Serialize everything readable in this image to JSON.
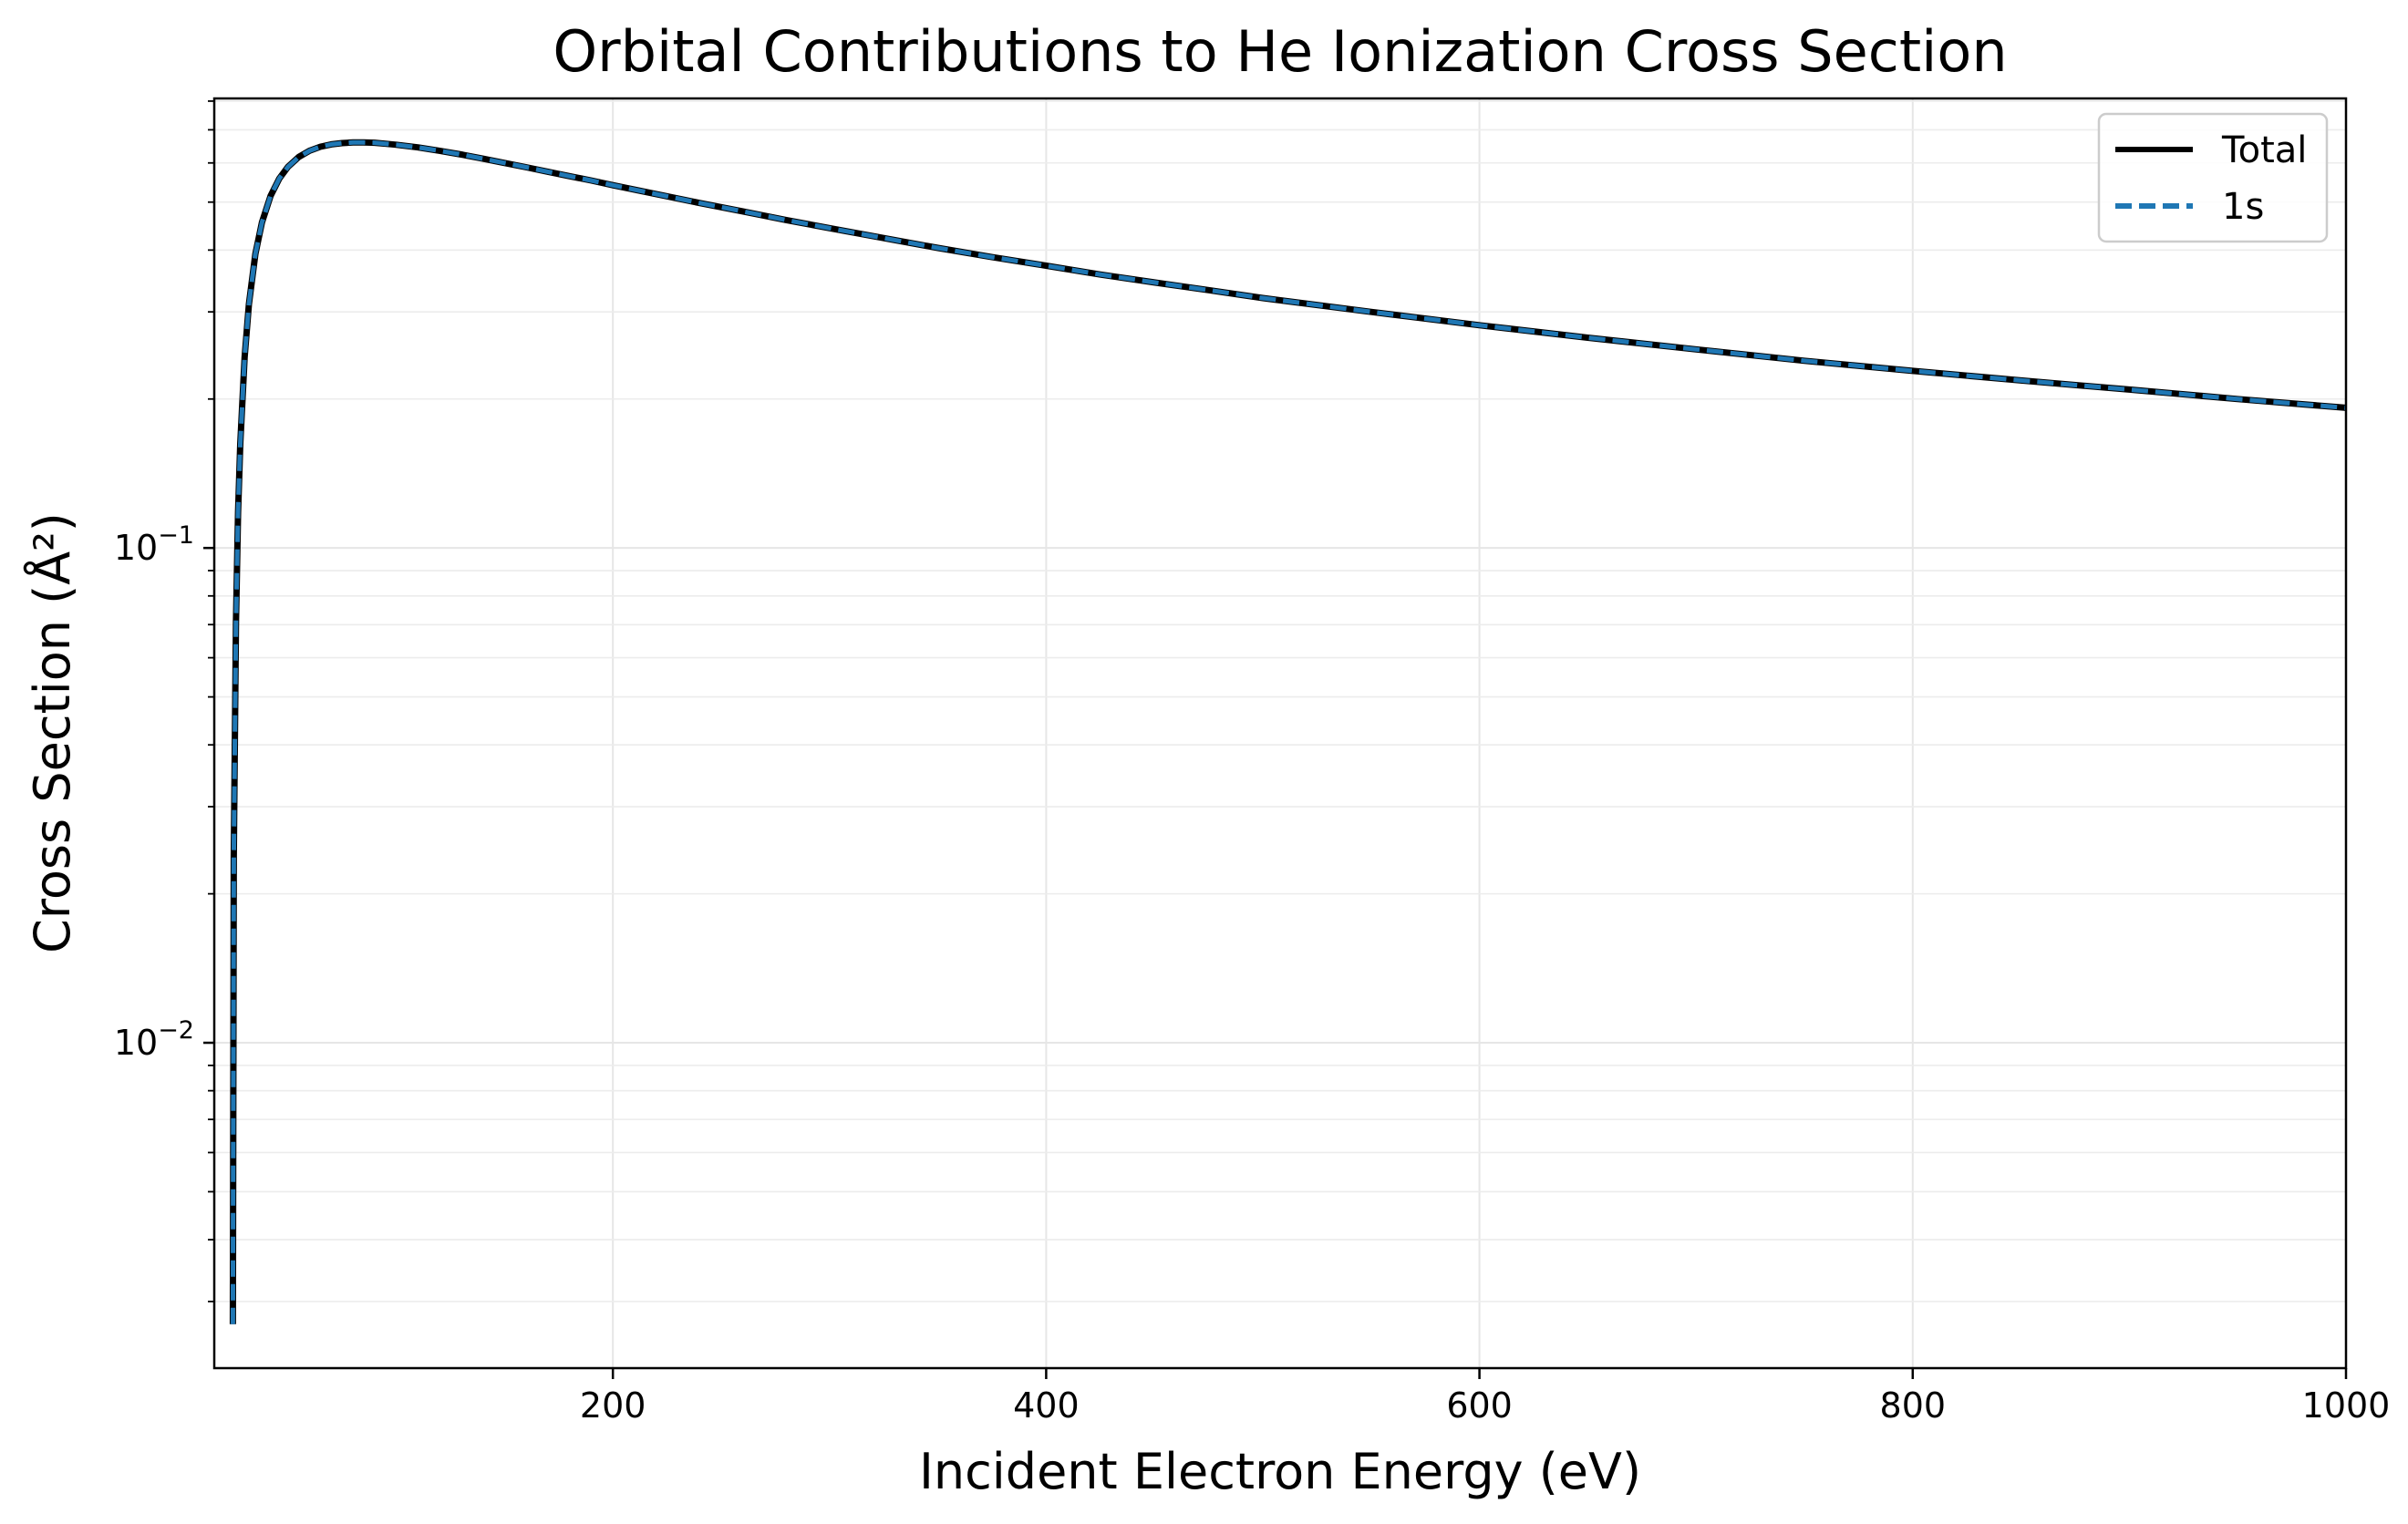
{
  "chart_data": {
    "type": "line",
    "title": "Orbital Contributions to He Ionization Cross Section",
    "xlabel": "Incident Electron Energy (eV)",
    "ylabel": "Cross Section (Å²)",
    "xscale": "linear",
    "yscale": "log",
    "xlim": [
      16,
      1000
    ],
    "ylim": [
      0.0022,
      0.81
    ],
    "x_ticks": [
      {
        "value": 200,
        "label": "200"
      },
      {
        "value": 400,
        "label": "400"
      },
      {
        "value": 600,
        "label": "600"
      },
      {
        "value": 800,
        "label": "800"
      },
      {
        "value": 1000,
        "label": "1000"
      }
    ],
    "y_ticks": [
      {
        "value": 0.01,
        "base": "10",
        "exponent": "−2"
      },
      {
        "value": 0.1,
        "base": "10",
        "exponent": "−1"
      }
    ],
    "grid": true,
    "legend_position": "upper-right",
    "x": [
      24.6,
      25,
      26,
      27,
      28,
      30,
      32,
      35,
      38,
      42,
      46,
      50,
      55,
      60,
      65,
      70,
      75,
      80,
      85,
      90,
      95,
      100,
      110,
      120,
      130,
      140,
      150,
      160,
      170,
      180,
      190,
      200,
      220,
      240,
      260,
      280,
      300,
      325,
      350,
      375,
      400,
      425,
      450,
      475,
      500,
      550,
      600,
      650,
      700,
      750,
      800,
      850,
      900,
      950,
      1000
    ],
    "series": [
      {
        "name": "Total",
        "color": "#000000",
        "style": "solid",
        "values": [
          0.0027,
          0.0238,
          0.0707,
          0.118,
          0.162,
          0.243,
          0.311,
          0.393,
          0.455,
          0.515,
          0.558,
          0.589,
          0.617,
          0.635,
          0.647,
          0.654,
          0.658,
          0.66,
          0.66,
          0.659,
          0.656,
          0.653,
          0.645,
          0.635,
          0.624,
          0.612,
          0.6,
          0.588,
          0.576,
          0.564,
          0.553,
          0.541,
          0.519,
          0.498,
          0.479,
          0.46,
          0.443,
          0.423,
          0.404,
          0.387,
          0.372,
          0.357,
          0.344,
          0.332,
          0.32,
          0.3,
          0.282,
          0.266,
          0.252,
          0.239,
          0.228,
          0.218,
          0.209,
          0.2,
          0.192
        ]
      },
      {
        "name": "1s",
        "color": "#1f77b4",
        "style": "dashed",
        "values": [
          0.0027,
          0.0238,
          0.0707,
          0.118,
          0.162,
          0.243,
          0.311,
          0.393,
          0.455,
          0.515,
          0.558,
          0.589,
          0.617,
          0.635,
          0.647,
          0.654,
          0.658,
          0.66,
          0.66,
          0.659,
          0.656,
          0.653,
          0.645,
          0.635,
          0.624,
          0.612,
          0.6,
          0.588,
          0.576,
          0.564,
          0.553,
          0.541,
          0.519,
          0.498,
          0.479,
          0.46,
          0.443,
          0.423,
          0.404,
          0.387,
          0.372,
          0.357,
          0.344,
          0.332,
          0.32,
          0.3,
          0.282,
          0.266,
          0.252,
          0.239,
          0.228,
          0.218,
          0.209,
          0.2,
          0.192
        ]
      }
    ]
  }
}
